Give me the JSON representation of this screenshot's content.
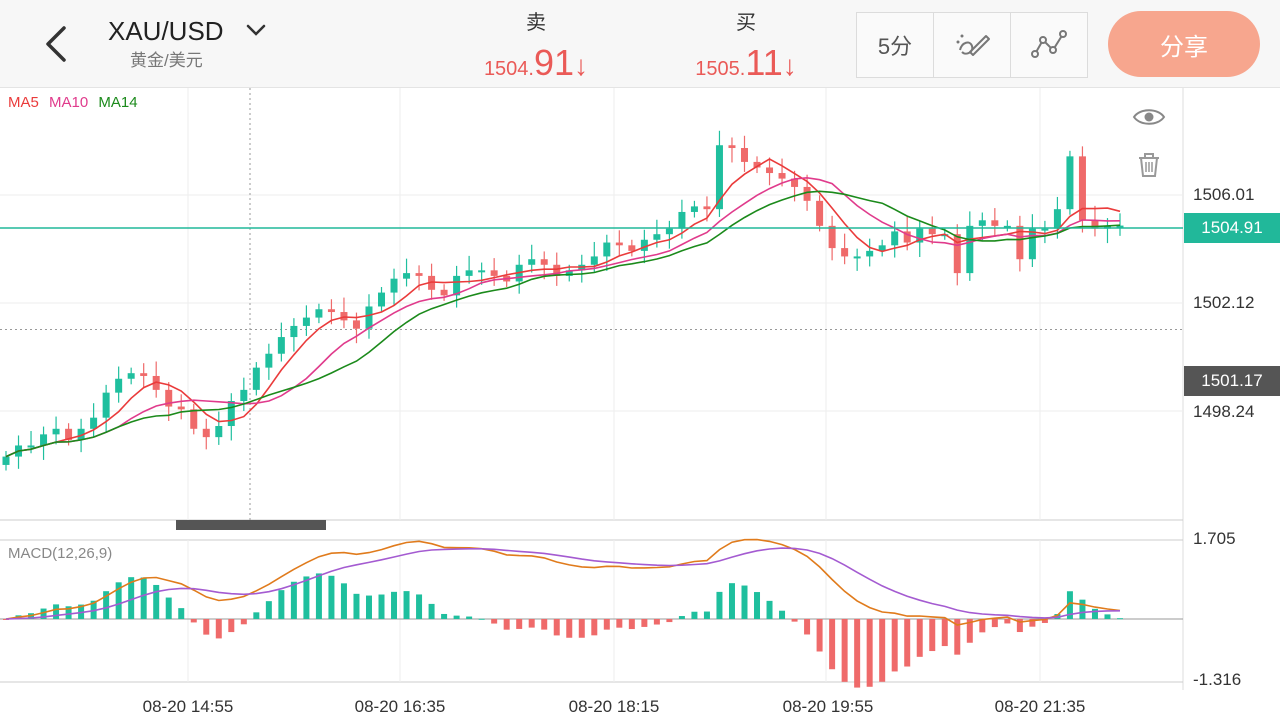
{
  "header": {
    "symbol": "XAU/USD",
    "subtitle": "黄金/美元",
    "sell_label": "卖",
    "sell_price_head": "1504.",
    "sell_price_tail": "91",
    "buy_label": "买",
    "buy_price_head": "1505.",
    "buy_price_tail": "11",
    "down_arrow": "↓",
    "interval": "5分",
    "share_label": "分享"
  },
  "legend": {
    "ma5": "MA5",
    "ma10": "MA10",
    "ma14": "MA14"
  },
  "macd_label": "MACD(12,26,9)",
  "price_axis": {
    "p1": "1506.01",
    "p2": "1502.12",
    "p3": "1498.24",
    "current": "1504.91",
    "crosshair": "1501.17"
  },
  "macd_axis": {
    "top": "1.705",
    "bottom": "-1.316"
  },
  "time_axis": [
    "08-20 14:55",
    "08-20 16:35",
    "08-20 18:15",
    "08-20 19:55",
    "08-20 21:35"
  ],
  "colors": {
    "up": "#1fbf9e",
    "down": "#ef6a6a",
    "ma5": "#ea3b3b",
    "ma10": "#e03b8c",
    "ma14": "#1b8a1b",
    "current_line": "#21b89a",
    "dif": "#e07b1c",
    "dea": "#a45bd1",
    "share": "#f7a68e"
  },
  "chart_data": {
    "type": "candlestick",
    "interval": "5分",
    "current_price": 1504.91,
    "crosshair_price": 1501.17,
    "candles_close_approx": [
      1496.6,
      1497.0,
      1497.0,
      1497.4,
      1497.6,
      1497.2,
      1497.6,
      1498.0,
      1498.9,
      1499.4,
      1499.6,
      1499.5,
      1499.0,
      1498.4,
      1498.3,
      1497.6,
      1497.3,
      1497.7,
      1498.6,
      1499.0,
      1499.8,
      1500.3,
      1500.9,
      1501.3,
      1501.6,
      1501.9,
      1501.8,
      1501.5,
      1501.2,
      1502.0,
      1502.5,
      1503.0,
      1503.2,
      1503.1,
      1502.6,
      1502.4,
      1503.1,
      1503.3,
      1503.3,
      1503.1,
      1502.9,
      1503.5,
      1503.7,
      1503.5,
      1503.1,
      1503.3,
      1503.5,
      1503.8,
      1504.3,
      1504.2,
      1504.0,
      1504.4,
      1504.6,
      1504.8,
      1505.4,
      1505.6,
      1505.5,
      1507.8,
      1507.7,
      1507.2,
      1507.0,
      1506.8,
      1506.6,
      1506.3,
      1505.8,
      1504.9,
      1504.1,
      1503.8,
      1503.8,
      1504.0,
      1504.2,
      1504.7,
      1504.3,
      1504.8,
      1504.6,
      1504.6,
      1503.2,
      1504.9,
      1505.1,
      1504.9,
      1504.9,
      1503.7,
      1504.8,
      1504.8,
      1505.5,
      1507.4,
      1505.1,
      1504.8,
      1504.9,
      1504.91
    ],
    "macd": {
      "dif_last": 0.04,
      "dea_last": 0.03,
      "ylim": [
        -1.316,
        1.705
      ]
    }
  }
}
